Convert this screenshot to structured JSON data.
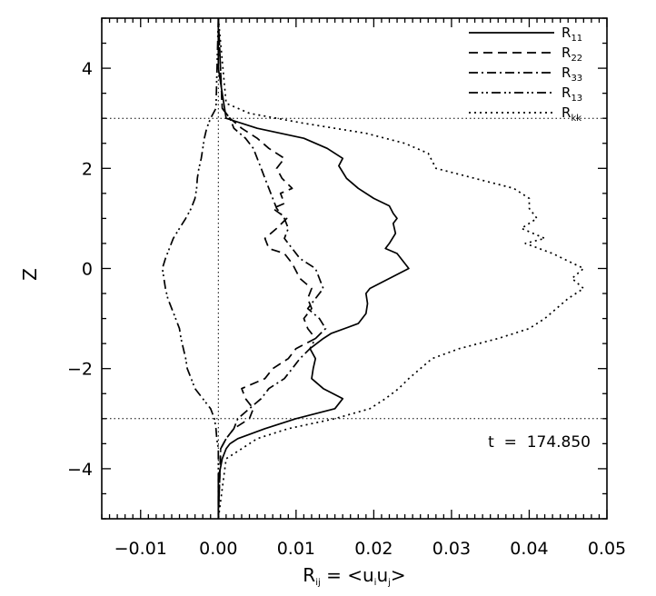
{
  "chart_data": {
    "type": "line",
    "orientation": "profile",
    "xlabel": {
      "base": "R",
      "sub": "ij",
      "mid": " = <u",
      "sub2": "i",
      "mid2": "u",
      "sub3": "j",
      "end": ">"
    },
    "ylabel": "Z",
    "xlim": [
      -0.015,
      0.05
    ],
    "ylim": [
      -5,
      5
    ],
    "xticks": [
      -0.01,
      0.0,
      0.01,
      0.02,
      0.03,
      0.04,
      0.05
    ],
    "xtick_labels": [
      "−0.01",
      "0.00",
      "0.01",
      "0.02",
      "0.03",
      "0.04",
      "0.05"
    ],
    "yticks": [
      -4,
      -2,
      0,
      2,
      4
    ],
    "ytick_labels": [
      "−4",
      "−2",
      "0",
      "2",
      "4"
    ],
    "reference_lines": {
      "horizontal": [
        3,
        -3
      ],
      "vertical": [
        0
      ]
    },
    "annotation": "t  =  174.850",
    "legend_position": "top-right",
    "series": [
      {
        "name": "R11",
        "base": "R",
        "sub": "11",
        "style": "solid",
        "z": [
          5,
          4,
          3.5,
          3.2,
          3.0,
          2.8,
          2.6,
          2.4,
          2.2,
          2.05,
          1.8,
          1.6,
          1.4,
          1.25,
          1.1,
          1.0,
          0.9,
          0.7,
          0.5,
          0.4,
          0.3,
          0.2,
          0.0,
          -0.2,
          -0.4,
          -0.5,
          -0.7,
          -0.9,
          -1.1,
          -1.3,
          -1.4,
          -1.6,
          -1.8,
          -2.0,
          -2.2,
          -2.4,
          -2.6,
          -2.8,
          -3.0,
          -3.2,
          -3.4,
          -3.5,
          -3.6,
          -3.8,
          -4.2,
          -5
        ],
        "x": [
          0,
          0,
          0.0005,
          0.0008,
          0.001,
          0.005,
          0.011,
          0.014,
          0.016,
          0.0155,
          0.0165,
          0.018,
          0.02,
          0.022,
          0.0225,
          0.023,
          0.0225,
          0.0228,
          0.022,
          0.0215,
          0.023,
          0.0235,
          0.0245,
          0.022,
          0.0195,
          0.019,
          0.0192,
          0.019,
          0.018,
          0.0145,
          0.0135,
          0.0118,
          0.0125,
          0.0122,
          0.012,
          0.0135,
          0.016,
          0.015,
          0.01,
          0.006,
          0.0025,
          0.0015,
          0.001,
          0.0005,
          0,
          0
        ]
      },
      {
        "name": "R22",
        "base": "R",
        "sub": "22",
        "style": "dashed",
        "z": [
          5,
          3.2,
          3.0,
          2.8,
          2.6,
          2.4,
          2.2,
          2.0,
          1.8,
          1.6,
          1.5,
          1.3,
          1.2,
          1.0,
          0.8,
          0.6,
          0.4,
          0.3,
          0.1,
          -0.2,
          -0.4,
          -0.6,
          -0.8,
          -1.0,
          -1.2,
          -1.4,
          -1.6,
          -1.8,
          -2.0,
          -2.2,
          -2.4,
          -2.6,
          -2.8,
          -3.0,
          -3.2,
          -3.4,
          -3.6,
          -5
        ],
        "x": [
          0,
          0.0005,
          0.0015,
          0.003,
          0.005,
          0.0065,
          0.0085,
          0.0075,
          0.0082,
          0.0095,
          0.008,
          0.0085,
          0.007,
          0.0088,
          0.0075,
          0.006,
          0.0065,
          0.0085,
          0.0095,
          0.0105,
          0.012,
          0.0115,
          0.012,
          0.011,
          0.0115,
          0.0125,
          0.01,
          0.009,
          0.007,
          0.006,
          0.003,
          0.0035,
          0.0045,
          0.004,
          0.002,
          0.001,
          0.0003,
          0
        ]
      },
      {
        "name": "R33",
        "base": "R",
        "sub": "33",
        "style": "dashdot",
        "z": [
          5,
          3.2,
          3.0,
          2.8,
          2.6,
          2.4,
          2.2,
          2.0,
          1.8,
          1.6,
          1.4,
          1.2,
          1.0,
          0.8,
          0.6,
          0.4,
          0.2,
          0.0,
          -0.2,
          -0.4,
          -0.6,
          -0.8,
          -1.0,
          -1.2,
          -1.4,
          -1.6,
          -1.8,
          -2.0,
          -2.2,
          -2.4,
          -2.6,
          -2.8,
          -3.0,
          -3.2,
          -3.4,
          -3.6,
          -5
        ],
        "x": [
          0,
          0.0005,
          0.0015,
          0.002,
          0.0035,
          0.0045,
          0.005,
          0.0055,
          0.006,
          0.0065,
          0.007,
          0.0075,
          0.0085,
          0.009,
          0.0085,
          0.0095,
          0.0105,
          0.0125,
          0.013,
          0.0135,
          0.0125,
          0.0115,
          0.013,
          0.0138,
          0.0125,
          0.0118,
          0.0105,
          0.0095,
          0.0085,
          0.0065,
          0.0055,
          0.004,
          0.0025,
          0.002,
          0.001,
          0.0003,
          0
        ]
      },
      {
        "name": "R13",
        "base": "R",
        "sub": "13",
        "style": "dashdotdot",
        "z": [
          5,
          3.2,
          3.0,
          2.8,
          2.6,
          2.4,
          2.2,
          2.0,
          1.8,
          1.6,
          1.4,
          1.2,
          1.0,
          0.8,
          0.6,
          0.4,
          0.2,
          0.0,
          -0.2,
          -0.4,
          -0.6,
          -0.8,
          -1.0,
          -1.2,
          -1.4,
          -1.6,
          -1.8,
          -2.0,
          -2.2,
          -2.4,
          -2.6,
          -2.8,
          -3.0,
          -3.2,
          -3.4,
          -3.6,
          -5
        ],
        "x": [
          0,
          -0.0003,
          -0.001,
          -0.0015,
          -0.0018,
          -0.002,
          -0.0022,
          -0.0025,
          -0.0027,
          -0.0028,
          -0.003,
          -0.0035,
          -0.0042,
          -0.005,
          -0.0058,
          -0.0063,
          -0.0068,
          -0.0072,
          -0.007,
          -0.0068,
          -0.0065,
          -0.006,
          -0.0055,
          -0.005,
          -0.0048,
          -0.0045,
          -0.0042,
          -0.004,
          -0.0035,
          -0.003,
          -0.002,
          -0.001,
          -0.0005,
          -0.0003,
          -0.0002,
          0,
          0
        ]
      },
      {
        "name": "Rkk",
        "base": "R",
        "sub": "kk",
        "style": "dotted",
        "z": [
          5,
          3.3,
          3.1,
          2.9,
          2.7,
          2.5,
          2.3,
          2.0,
          1.8,
          1.6,
          1.4,
          1.2,
          1.0,
          0.8,
          0.6,
          0.5,
          0.3,
          0.0,
          -0.2,
          -0.4,
          -0.6,
          -0.8,
          -1.0,
          -1.2,
          -1.4,
          -1.6,
          -1.8,
          -2.0,
          -2.2,
          -2.4,
          -2.6,
          -2.8,
          -3.0,
          -3.2,
          -3.4,
          -3.6,
          -3.8,
          -5
        ],
        "x": [
          0,
          0.001,
          0.004,
          0.011,
          0.019,
          0.024,
          0.027,
          0.028,
          0.033,
          0.038,
          0.04,
          0.04,
          0.041,
          0.039,
          0.042,
          0.0395,
          0.043,
          0.047,
          0.0455,
          0.047,
          0.045,
          0.0435,
          0.042,
          0.04,
          0.036,
          0.031,
          0.0275,
          0.026,
          0.0245,
          0.0232,
          0.0215,
          0.0195,
          0.015,
          0.009,
          0.005,
          0.003,
          0.001,
          0
        ]
      }
    ]
  }
}
